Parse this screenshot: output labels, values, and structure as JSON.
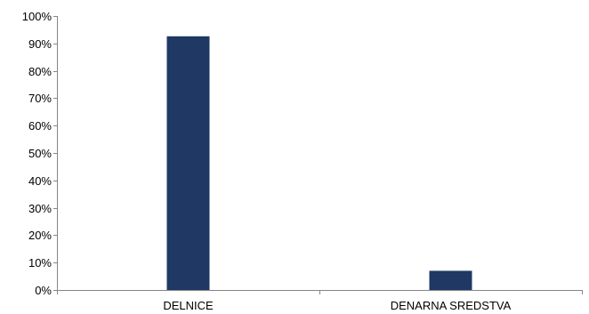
{
  "chart_data": {
    "type": "bar",
    "categories": [
      "DELNICE",
      "DENARNA SREDSTVA"
    ],
    "series": [
      {
        "values": [
          92.6,
          7.0
        ],
        "color": "#1f3864"
      }
    ],
    "ylim": [
      0,
      100
    ],
    "yticks": [
      0,
      10,
      20,
      30,
      40,
      50,
      60,
      70,
      80,
      90,
      100
    ],
    "ytick_labels": [
      "0%",
      "10%",
      "20%",
      "30%",
      "40%",
      "50%",
      "60%",
      "70%",
      "80%",
      "90%",
      "100%"
    ],
    "grid": false,
    "legend": "none"
  }
}
